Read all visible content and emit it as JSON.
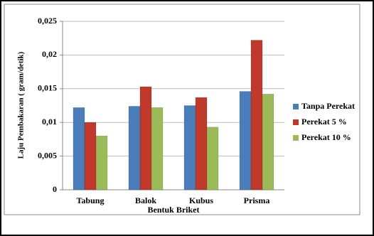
{
  "chart_data": {
    "type": "bar",
    "y_label": "Laju Pembakaran ( gram/detik)",
    "x_label": "Bentuk Briket",
    "categories": [
      "Tabung",
      "Balok",
      "Kubus",
      "Prisma"
    ],
    "series": [
      {
        "name": "Tanpa Perekat",
        "color": "#4a7ebb",
        "values": [
          0.0122,
          0.0124,
          0.0125,
          0.0146
        ]
      },
      {
        "name": "Perekat 5 %",
        "color": "#c0392b",
        "values": [
          0.01,
          0.0153,
          0.0137,
          0.0222
        ]
      },
      {
        "name": "Perekat 10 %",
        "color": "#9bbb59",
        "values": [
          0.008,
          0.0122,
          0.0093,
          0.0142
        ]
      }
    ],
    "ylim": [
      0,
      0.025
    ],
    "yticks": [
      0,
      {
        "value": 0.005,
        "label": "0,005"
      },
      {
        "value": 0.01,
        "label": "0,01"
      },
      {
        "value": 0.015,
        "label": "0,015"
      },
      {
        "value": 0.02,
        "label": "0,02"
      },
      {
        "value": 0.025,
        "label": "0,025"
      }
    ],
    "grid": true,
    "legend": "right"
  }
}
